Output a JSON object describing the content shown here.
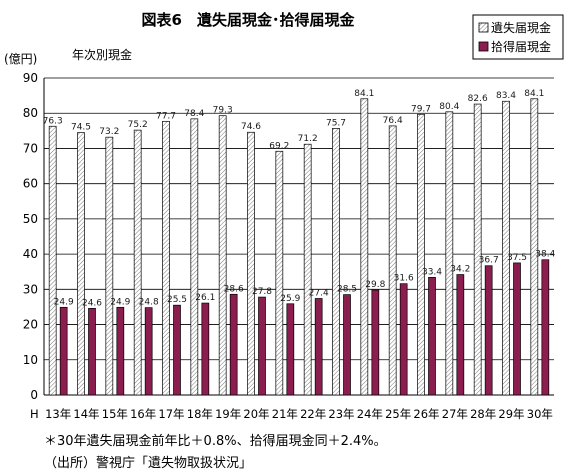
{
  "figure": {
    "title": "図表6　遺失届現金･拾得届現金",
    "unit_label": "(億円)",
    "sub_label": "年次別現金",
    "era_prefix": "H",
    "note": "＊30年遺失届現金前年比＋0.8%、拾得届現金同＋2.4%。",
    "source": "（出所）警視庁「遺失物取扱状況」"
  },
  "chart_data": {
    "type": "bar",
    "categories": [
      "13年",
      "14年",
      "15年",
      "16年",
      "17年",
      "18年",
      "19年",
      "20年",
      "21年",
      "22年",
      "23年",
      "24年",
      "25年",
      "26年",
      "27年",
      "28年",
      "29年",
      "30年"
    ],
    "series": [
      {
        "name": "遺失届現金",
        "pattern": "hatched",
        "color": "#ffffff",
        "values": [
          76.3,
          74.5,
          73.2,
          75.2,
          77.7,
          78.4,
          79.3,
          74.6,
          69.2,
          71.2,
          75.7,
          84.1,
          76.4,
          79.7,
          80.4,
          82.6,
          83.4,
          84.1
        ]
      },
      {
        "name": "拾得届現金",
        "pattern": "solid",
        "color": "#8b1e4f",
        "values": [
          24.9,
          24.6,
          24.9,
          24.8,
          25.5,
          26.1,
          28.6,
          27.8,
          25.9,
          27.4,
          28.5,
          29.8,
          31.6,
          33.4,
          34.2,
          36.7,
          37.5,
          38.4
        ]
      }
    ],
    "ylim": [
      0,
      90
    ],
    "yticks": [
      0,
      10,
      20,
      30,
      40,
      50,
      60,
      70,
      80,
      90
    ],
    "ylabel": "(億円)",
    "xlabel": "",
    "grid": "horizontal",
    "legend": "top-right"
  }
}
